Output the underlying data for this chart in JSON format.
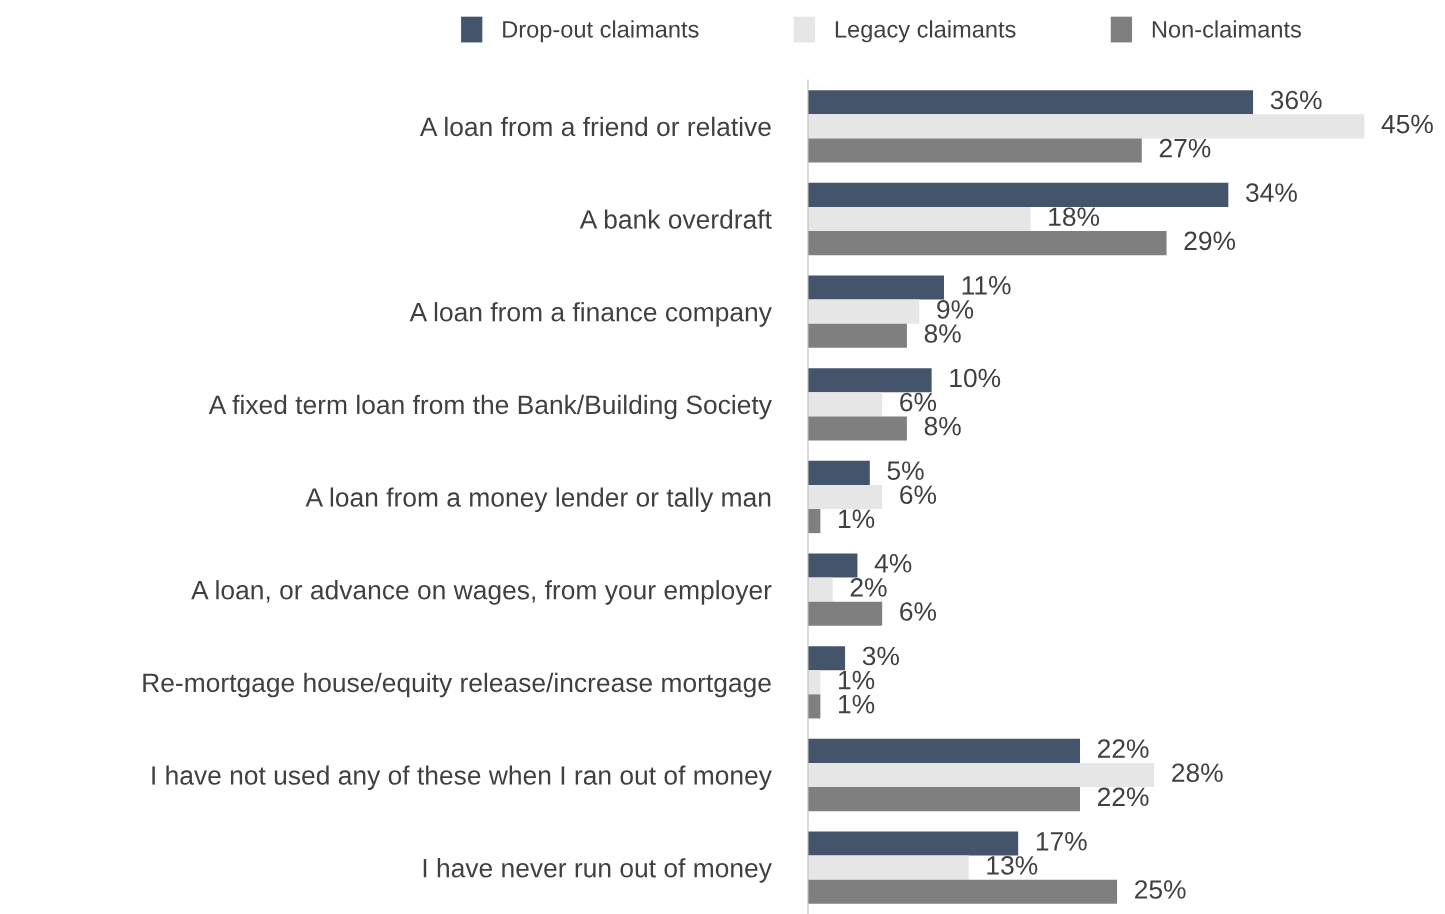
{
  "chart_data": {
    "type": "bar",
    "orientation": "horizontal",
    "legend": "top",
    "grid": false,
    "categories": [
      "A loan from a friend or relative",
      "A bank overdraft",
      "A loan from a finance company",
      "A fixed term loan from the Bank/Building Society",
      "A loan from a money lender or tally man",
      "A loan, or advance on wages, from your employer",
      "Re-mortgage house/equity release/increase mortgage",
      "I have not used any of these when I ran out of money",
      "I have never run out of money"
    ],
    "series": [
      {
        "name": "Drop-out claimants",
        "color": "#44546a",
        "values": [
          36,
          34,
          11,
          10,
          5,
          4,
          3,
          22,
          17
        ],
        "value_labels": [
          "36%",
          "34%",
          "11%",
          "10%",
          "5%",
          "4%",
          "3%",
          "22%",
          "17%"
        ]
      },
      {
        "name": "Legacy claimants",
        "color": "#e7e6e6",
        "values": [
          45,
          18,
          9,
          6,
          6,
          2,
          1,
          28,
          13
        ],
        "value_labels": [
          "45%",
          "18%",
          "9%",
          "6%",
          "6%",
          "2%",
          "1%",
          "28%",
          "13%"
        ]
      },
      {
        "name": "Non-claimants",
        "color": "#7f7f80",
        "values": [
          27,
          29,
          8,
          8,
          1,
          6,
          1,
          22,
          25
        ],
        "value_labels": [
          "27%",
          "29%",
          "8%",
          "8%",
          "1%",
          "6%",
          "1%",
          "22%",
          "25%"
        ]
      }
    ]
  }
}
